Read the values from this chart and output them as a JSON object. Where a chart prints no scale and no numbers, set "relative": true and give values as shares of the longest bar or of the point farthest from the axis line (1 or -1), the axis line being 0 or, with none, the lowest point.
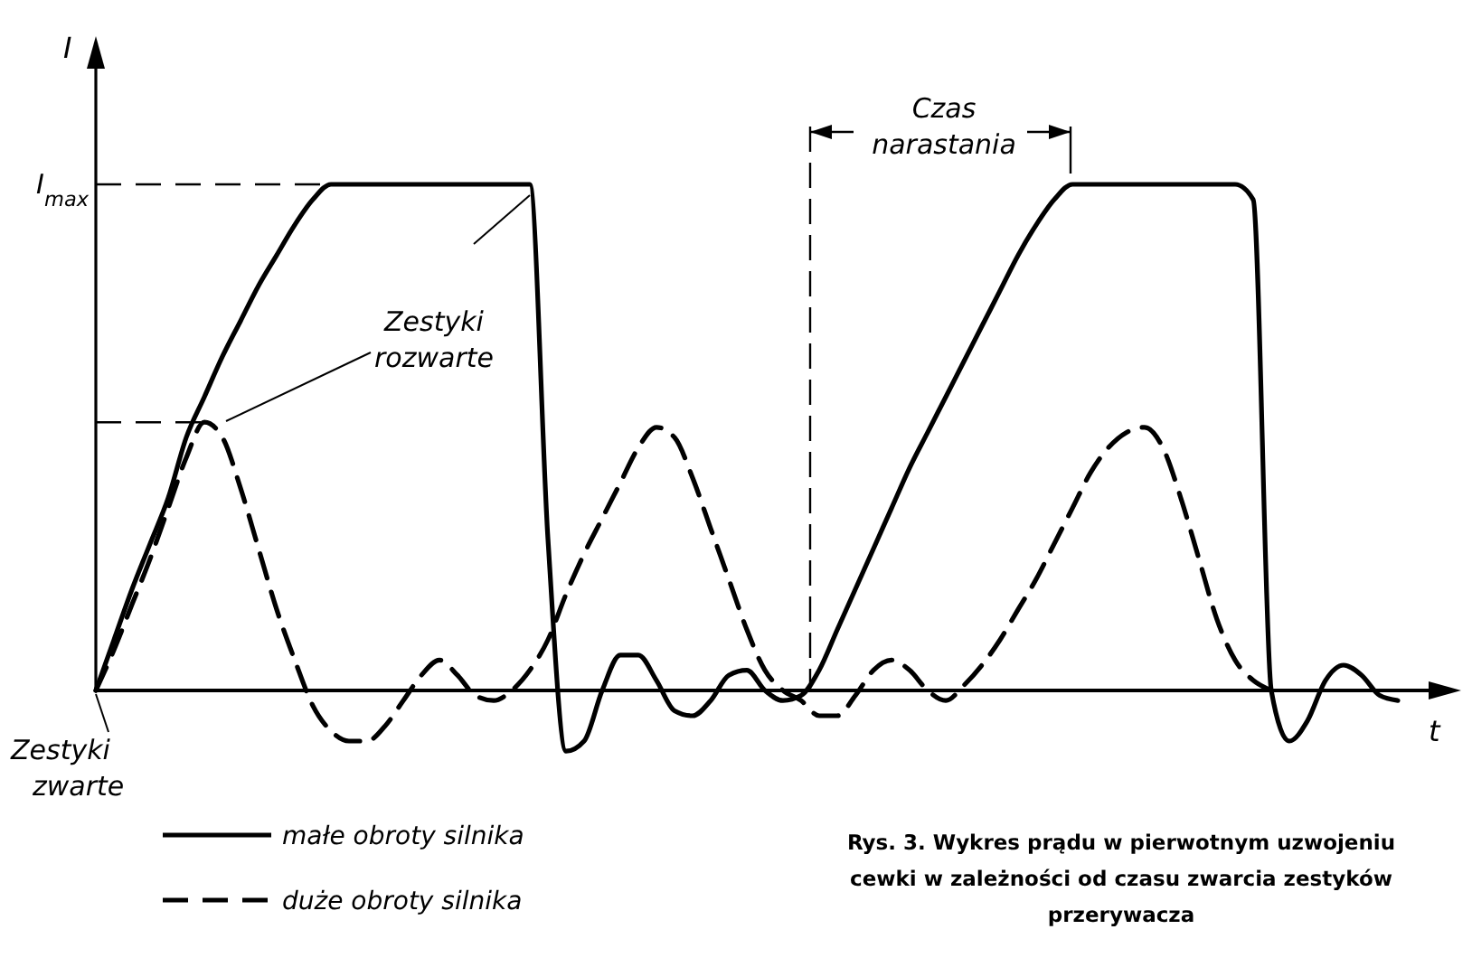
{
  "chart_data": {
    "type": "line",
    "relative": true,
    "ylabel": "I",
    "xlabel": "t",
    "categories": [
      null,
      null,
      null,
      null,
      null,
      null,
      null,
      null,
      null,
      null,
      null,
      null,
      null,
      null,
      null,
      null,
      null,
      null,
      null,
      null,
      null,
      null,
      null,
      null,
      null,
      null,
      null,
      null,
      null,
      null,
      null,
      null,
      null,
      null,
      null,
      null,
      null,
      null,
      null,
      null,
      null,
      null,
      null,
      null,
      null,
      null,
      null,
      null,
      null,
      null,
      null,
      null,
      null,
      null,
      null,
      null,
      null,
      null,
      null,
      null,
      null,
      null,
      null,
      null,
      null,
      null,
      null,
      null,
      null,
      null,
      null,
      null,
      null
    ],
    "series": [
      {
        "name": "małe obroty silnika",
        "color": "#000000",
        "line_style": "solid",
        "values": [
          0,
          0.1,
          0.2,
          0.29,
          0.38,
          0.5,
          0.58,
          0.66,
          0.73,
          0.8,
          0.86,
          0.92,
          0.97,
          1,
          1,
          1,
          1,
          1,
          1,
          1,
          1,
          1,
          1,
          1,
          1,
          0.3,
          -0.12,
          -0.1,
          0,
          0.07,
          0.07,
          0.02,
          -0.04,
          -0.05,
          -0.02,
          0.03,
          0.04,
          0,
          -0.02,
          -0.01,
          0.04,
          0.12,
          0.2,
          0.28,
          0.36,
          0.44,
          0.51,
          0.58,
          0.65,
          0.72,
          0.79,
          0.86,
          0.92,
          0.97,
          1,
          1,
          1,
          1,
          1,
          1,
          1,
          1,
          1,
          1,
          0.97,
          0,
          -0.1,
          -0.06,
          0.02,
          0.05,
          0.03,
          -0.01,
          -0.02
        ]
      },
      {
        "name": "duże obroty silnika",
        "color": "#000000",
        "line_style": "dashed",
        "values": [
          0,
          0.08,
          0.17,
          0.26,
          0.36,
          0.46,
          0.53,
          0.5,
          0.4,
          0.28,
          0.16,
          0.06,
          -0.03,
          -0.08,
          -0.1,
          -0.1,
          -0.07,
          -0.02,
          0.03,
          0.06,
          0.03,
          -0.01,
          -0.02,
          0,
          0.04,
          0.1,
          0.19,
          0.27,
          0.34,
          0.41,
          0.48,
          0.52,
          0.5,
          0.42,
          0.32,
          0.22,
          0.12,
          0.04,
          0,
          -0.02,
          -0.05,
          -0.05,
          -0.01,
          0.04,
          0.06,
          0.04,
          0,
          -0.02,
          0.01,
          0.05,
          0.1,
          0.16,
          0.22,
          0.29,
          0.36,
          0.43,
          0.48,
          0.51,
          0.52,
          0.48,
          0.38,
          0.26,
          0.14,
          0.06,
          0.02,
          0,
          null,
          null,
          null,
          null,
          null,
          null,
          null
        ]
      }
    ],
    "ref_lines": [
      {
        "axis": "y",
        "value": 1,
        "label": "I$_{max}$",
        "line_style": "dashed"
      },
      {
        "axis": "y",
        "value": 0.53,
        "label": null,
        "line_style": "dashed"
      }
    ],
    "annotations": [
      "Zestyki rozwarte",
      "Zestyki zwarte",
      "Czas narastania",
      "Rys. 3. Wykres prądu w pierwotnym uzwojeniu cewki w zależności od czasu zwarcia zestyków przerywacza"
    ],
    "legend": "bottom left"
  }
}
